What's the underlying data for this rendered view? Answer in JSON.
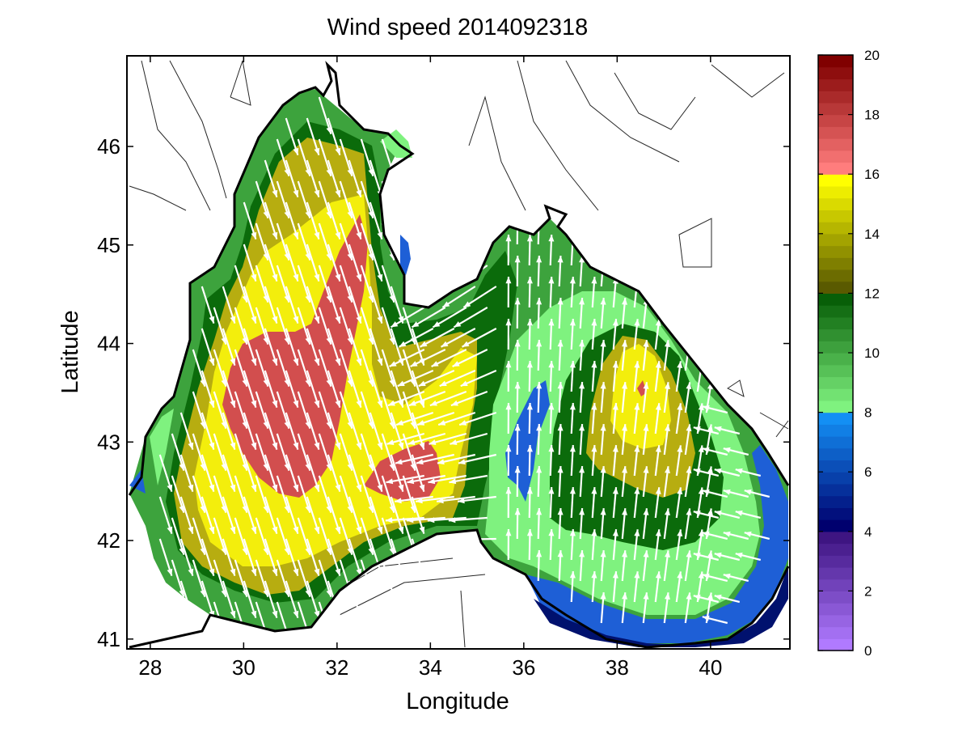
{
  "chart_data": {
    "type": "heatmap",
    "title": "Wind speed 2014092318",
    "xlabel": "Longitude",
    "ylabel": "Latitude",
    "xlim": [
      27.5,
      41.7
    ],
    "ylim": [
      40.9,
      46.92
    ],
    "x_ticks": [
      "28",
      "30",
      "32",
      "34",
      "36",
      "38",
      "40"
    ],
    "y_ticks": [
      "41",
      "42",
      "43",
      "44",
      "45",
      "46"
    ],
    "colorbar": {
      "range": [
        0,
        20
      ],
      "tick_labels": [
        "0",
        "2",
        "4",
        "6",
        "8",
        "10",
        "12",
        "14",
        "16",
        "18",
        "20"
      ],
      "bands": [
        {
          "from": 0,
          "to": 4,
          "color_low": "#b07aff",
          "color_high": "#3e1582"
        },
        {
          "from": 4,
          "to": 8,
          "color_low": "#00006e",
          "color_high": "#138ff4"
        },
        {
          "from": 8,
          "to": 12,
          "color_low": "#7ff27f",
          "color_high": "#085f08"
        },
        {
          "from": 12,
          "to": 16,
          "color_low": "#5a5a00",
          "color_high": "#ffff00"
        },
        {
          "from": 16,
          "to": 20,
          "color_low": "#ff7d7d",
          "color_high": "#800000"
        }
      ]
    },
    "speed_zones": [
      {
        "speed": 9,
        "color": "#3da33d",
        "region": "western basin edge"
      },
      {
        "speed": 11,
        "color": "#0b6b0b",
        "region": "western basin"
      },
      {
        "speed": 14,
        "color": "#b7ad10",
        "region": "western basin"
      },
      {
        "speed": 16,
        "color": "#f3ee0c",
        "region": "central"
      },
      {
        "speed": 17.5,
        "color": "#d24e4e",
        "region": "north-west core"
      },
      {
        "speed": 17.5,
        "color": "#d24e4e",
        "region": "south-central core"
      },
      {
        "speed": 8.5,
        "color": "#7ff27f",
        "region": "eastern basin"
      },
      {
        "speed": 6,
        "color": "#1e5fd6",
        "region": "south-east coast"
      },
      {
        "speed": 4.5,
        "color": "#00116e",
        "region": "south-east coast"
      },
      {
        "speed": 14,
        "color": "#b7ad10",
        "region": "eastern core"
      },
      {
        "speed": 16,
        "color": "#f3ee0c",
        "region": "eastern core"
      },
      {
        "speed": 18,
        "color": "#d24e4e",
        "region": "eastern peak"
      }
    ],
    "grid": false,
    "legend": "colorbar right"
  }
}
